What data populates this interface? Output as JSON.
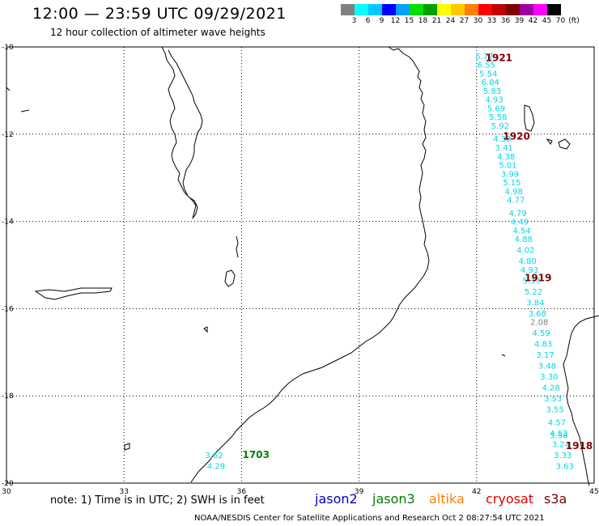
{
  "header": {
    "title": "12:00 — 23:59 UTC 09/29/2021",
    "subtitle": "12 hour collection of altimeter wave heights"
  },
  "legend": {
    "colors": [
      "#808080",
      "#00ffff",
      "#00c8ff",
      "#0000ff",
      "#00a0ff",
      "#00e000",
      "#00a000",
      "#ffff00",
      "#ffc800",
      "#ff8000",
      "#ff0000",
      "#c00000",
      "#800000",
      "#a000a0",
      "#ff00ff",
      "#000000"
    ],
    "labels": [
      "3",
      "6",
      "9",
      "12",
      "15",
      "18",
      "21",
      "24",
      "27",
      "30",
      "33",
      "36",
      "39",
      "42",
      "45",
      "70",
      "(ft)"
    ]
  },
  "axes": {
    "x_ticks": [
      {
        "v": 30,
        "t": "30"
      },
      {
        "v": 33,
        "t": "33"
      },
      {
        "v": 36,
        "t": "36"
      },
      {
        "v": 39,
        "t": "39"
      },
      {
        "v": 42,
        "t": "42"
      },
      {
        "v": 45,
        "t": "45"
      }
    ],
    "y_ticks": [
      {
        "v": -10,
        "t": "-10"
      },
      {
        "v": -12,
        "t": "-12"
      },
      {
        "v": -14,
        "t": "-14"
      },
      {
        "v": -16,
        "t": "-16"
      },
      {
        "v": -18,
        "t": "-18"
      },
      {
        "v": -20,
        "t": "-20"
      }
    ]
  },
  "tracks": [
    {
      "color": "#00d8e8",
      "points": [
        {
          "lon": 42.2,
          "lat": -10.2,
          "t": "5.77"
        },
        {
          "lon": 42.25,
          "lat": -10.4,
          "t": "6.55"
        },
        {
          "lon": 42.3,
          "lat": -10.6,
          "t": "5.54"
        },
        {
          "lon": 42.35,
          "lat": -10.8,
          "t": "6.04"
        },
        {
          "lon": 42.4,
          "lat": -11.0,
          "t": "5.83"
        },
        {
          "lon": 42.45,
          "lat": -11.2,
          "t": "4.93"
        },
        {
          "lon": 42.5,
          "lat": -11.4,
          "t": "5.69"
        },
        {
          "lon": 42.55,
          "lat": -11.6,
          "t": "5.58"
        },
        {
          "lon": 42.6,
          "lat": -11.8,
          "t": "5.92"
        },
        {
          "lon": 42.65,
          "lat": -12.1,
          "t": "4.38"
        },
        {
          "lon": 42.7,
          "lat": -12.3,
          "t": "3.41"
        },
        {
          "lon": 42.75,
          "lat": -12.5,
          "t": "4.38"
        },
        {
          "lon": 42.8,
          "lat": -12.7,
          "t": "5.01"
        },
        {
          "lon": 42.85,
          "lat": -12.9,
          "t": "3.99"
        },
        {
          "lon": 42.9,
          "lat": -13.1,
          "t": "5.15"
        },
        {
          "lon": 42.95,
          "lat": -13.3,
          "t": "4.98"
        },
        {
          "lon": 43.0,
          "lat": -13.5,
          "t": "4.77"
        },
        {
          "lon": 43.05,
          "lat": -13.8,
          "t": "4.79"
        },
        {
          "lon": 43.1,
          "lat": -14.0,
          "t": "4.49"
        },
        {
          "lon": 43.15,
          "lat": -14.2,
          "t": "4.54"
        },
        {
          "lon": 43.2,
          "lat": -14.4,
          "t": "4.88"
        },
        {
          "lon": 43.25,
          "lat": -14.65,
          "t": "4.02"
        },
        {
          "lon": 43.3,
          "lat": -14.9,
          "t": "4.80"
        },
        {
          "lon": 43.35,
          "lat": -15.1,
          "t": "4.93"
        },
        {
          "lon": 43.4,
          "lat": -15.35,
          "t": "5.37"
        }
      ]
    },
    {
      "color": "#00d8e8",
      "points": [
        {
          "lon": 43.45,
          "lat": -15.6,
          "t": "5.22"
        },
        {
          "lon": 43.5,
          "lat": -15.85,
          "t": "3.84"
        },
        {
          "lon": 43.55,
          "lat": -16.1,
          "t": "3.68"
        },
        {
          "lon": 43.6,
          "lat": -16.3,
          "t": "2.08",
          "c": "#808080"
        },
        {
          "lon": 43.65,
          "lat": -16.55,
          "t": "4.59"
        },
        {
          "lon": 43.7,
          "lat": -16.8,
          "t": "4.83"
        },
        {
          "lon": 43.75,
          "lat": -17.05,
          "t": "3.17"
        },
        {
          "lon": 43.8,
          "lat": -17.3,
          "t": "3.48"
        },
        {
          "lon": 43.85,
          "lat": -17.55,
          "t": "3.30"
        },
        {
          "lon": 43.9,
          "lat": -17.8,
          "t": "4.28"
        },
        {
          "lon": 43.95,
          "lat": -18.05,
          "t": "3.53"
        },
        {
          "lon": 44.0,
          "lat": -18.3,
          "t": "3.55"
        },
        {
          "lon": 44.05,
          "lat": -18.6,
          "t": "4.57"
        },
        {
          "lon": 44.1,
          "lat": -18.85,
          "t": "4.53"
        },
        {
          "lon": 44.1,
          "lat": -18.9,
          "t": "3.58"
        },
        {
          "lon": 44.15,
          "lat": -19.1,
          "t": "3.24"
        },
        {
          "lon": 44.2,
          "lat": -19.35,
          "t": "3.33"
        },
        {
          "lon": 44.25,
          "lat": -19.6,
          "t": "3.63"
        }
      ]
    },
    {
      "color": "#00d8e8",
      "points": [
        {
          "lon": 35.3,
          "lat": -19.35,
          "t": "3.62"
        },
        {
          "lon": 35.35,
          "lat": -19.6,
          "t": "4.29"
        }
      ]
    }
  ],
  "times": [
    {
      "lon": 42.1,
      "lat": -10.25,
      "t": "1921",
      "color": "#800000"
    },
    {
      "lon": 42.55,
      "lat": -12.05,
      "t": "1920",
      "color": "#800000"
    },
    {
      "lon": 43.1,
      "lat": -15.3,
      "t": "1919",
      "color": "#800000"
    },
    {
      "lon": 44.15,
      "lat": -19.15,
      "t": "1918",
      "color": "#800000"
    },
    {
      "lon": 35.9,
      "lat": -19.35,
      "t": "1703",
      "color": "#008000"
    }
  ],
  "footer": {
    "note": "note: 1) Time is in UTC; 2) SWH is in feet",
    "satellites": [
      {
        "name": "jason2",
        "color": "#0000c0"
      },
      {
        "name": "jason3",
        "color": "#008000"
      },
      {
        "name": "altika",
        "color": "#ff8000"
      },
      {
        "name": "cryosat",
        "color": "#e00000"
      },
      {
        "name": "s3a",
        "color": "#800000"
      }
    ],
    "credit": "NOAA/NESDIS Center for Satellite Applications and Research    Oct  2 08:27:54 UTC 2021"
  }
}
